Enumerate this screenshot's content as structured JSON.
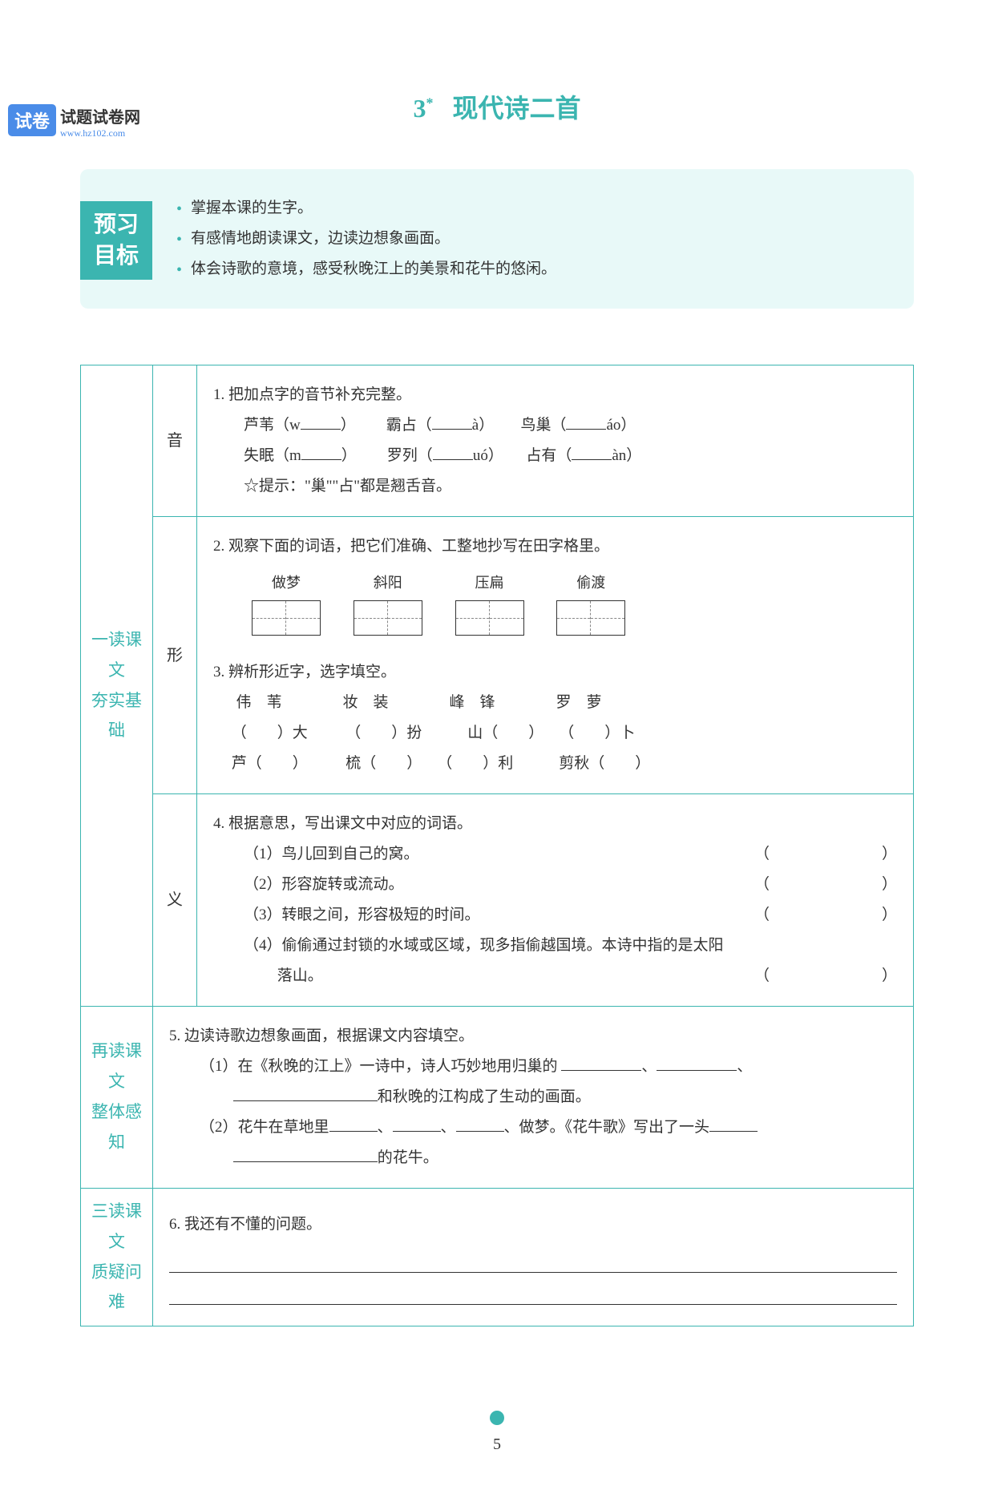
{
  "watermark": {
    "badge": "试卷",
    "line1": "试题试卷网",
    "line2": "www.hz102.com"
  },
  "title": {
    "number": "3",
    "star": "*",
    "text": "现代诗二首"
  },
  "colors": {
    "teal": "#3bb5b0",
    "teal_light": "#e8f9f8",
    "blue": "#4a8ce8"
  },
  "objectives": {
    "badge_line1": "预习",
    "badge_line2": "目标",
    "items": [
      "掌握本课的生字。",
      "有感情地朗读课文，边读边想象画面。",
      "体会诗歌的意境，感受秋晚江上的美景和花牛的悠闲。"
    ]
  },
  "sections": {
    "s1": {
      "label_a": "一读课文",
      "label_b": "夯实基础"
    },
    "s2": {
      "label_a": "再读课文",
      "label_b": "整体感知"
    },
    "s3": {
      "label_a": "三读课文",
      "label_b": "质疑问难"
    }
  },
  "yin": {
    "label": "音",
    "q1_intro": "1. 把加点字的音节补充完整。",
    "row1": {
      "a": "芦苇（w",
      "a2": "）",
      "b": "霸占（",
      "b2": "à）",
      "c": "鸟巢（",
      "c2": "áo）"
    },
    "row2": {
      "a": "失眠（m",
      "a2": "）",
      "b": "罗列（",
      "b2": "uó）",
      "c": "占有（",
      "c2": "àn）"
    },
    "tip": "☆提示：\"巢\"\"占\"都是翘舌音。"
  },
  "xing": {
    "label": "形",
    "q2_intro": "2. 观察下面的词语，把它们准确、工整地抄写在田字格里。",
    "words": [
      "做梦",
      "斜阳",
      "压扁",
      "偷渡"
    ],
    "q3_intro": "3. 辨析形近字，选字填空。",
    "pairs": "伟　苇　　　　妆　装　　　　峰　锋　　　　罗　萝",
    "line_a": "（　　）大　　　（　　）扮　　　山（　　）　　（　　）卜",
    "line_b": "芦（　　）　　　梳（　　）　　（　　）利　　　剪秋（　　）"
  },
  "yi": {
    "label": "义",
    "q4_intro": "4. 根据意思，写出课文中对应的词语。",
    "items": [
      "（1）鸟儿回到自己的窝。",
      "（2）形容旋转或流动。",
      "（3）转眼之间，形容极短的时间。"
    ],
    "item4_a": "（4）偷偷通过封锁的水域或区域，现多指偷越国境。本诗中指的是太阳",
    "item4_b": "落山。"
  },
  "q5": {
    "intro": "5. 边读诗歌边想象画面，根据课文内容填空。",
    "p1_a": "（1）在《秋晚的江上》一诗中，诗人巧妙地用归巢的",
    "p1_b": "和秋晚的江构成了生动的画面。",
    "p2_a": "（2）花牛在草地里",
    "p2_b": "、做梦。《花牛歌》写出了一头",
    "p2_c": "的花牛。"
  },
  "q6": {
    "intro": "6. 我还有不懂的问题。"
  },
  "footer": {
    "page": "5"
  }
}
